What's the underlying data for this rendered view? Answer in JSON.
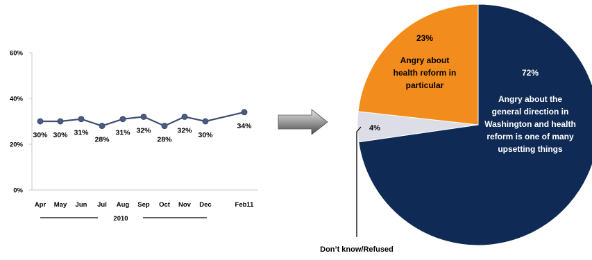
{
  "colors": {
    "line": "#3e4c6e",
    "marker": "#4a5a80",
    "grid_axis": "#c8c8c8",
    "arrow_dark": "#5a5a5a",
    "arrow_light": "#d8d8d8",
    "pie_navy": "#0f2b55",
    "pie_orange": "#f28c1c",
    "pie_gray": "#dcdde6",
    "text": "#000000",
    "text_on_dark": "#ffffff"
  },
  "chart_data": [
    {
      "type": "line",
      "categories": [
        "Apr",
        "May",
        "Jun",
        "Jul",
        "Aug",
        "Sep",
        "Oct",
        "Nov",
        "Dec",
        "Feb11"
      ],
      "values": [
        30,
        30,
        31,
        28,
        31,
        32,
        28,
        32,
        30,
        34
      ],
      "value_labels": [
        "30%",
        "30%",
        "31%",
        "28%",
        "31%",
        "32%",
        "28%",
        "32%",
        "30%",
        "34%"
      ],
      "y_ticks": [
        0,
        20,
        40,
        60
      ],
      "y_tick_labels": [
        "0%",
        "20%",
        "40%",
        "60%"
      ],
      "ylim": [
        0,
        60
      ],
      "grid": false,
      "year_label": "2010"
    },
    {
      "type": "pie",
      "slices": [
        {
          "key": "general",
          "value": 72,
          "label_value": "72%",
          "label_lines": [
            "Angry about the",
            "general direction in",
            "Washington and health",
            "reform is one of many",
            "upsetting things"
          ]
        },
        {
          "key": "refused",
          "value": 4,
          "label_value": "4%",
          "label_lines": [],
          "callout": "Don’t know/Refused"
        },
        {
          "key": "particular",
          "value": 23,
          "label_value": "23%",
          "label_lines": [
            "Angry about",
            "health reform in",
            "particular"
          ]
        }
      ]
    }
  ]
}
